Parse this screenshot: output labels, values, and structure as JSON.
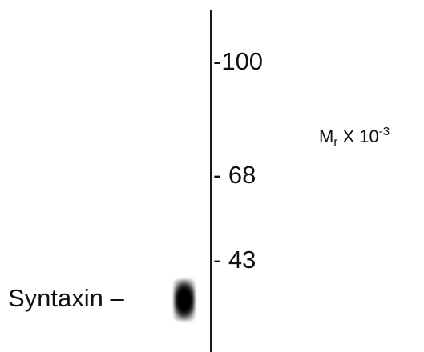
{
  "markers": {
    "m100": "-100",
    "m68": "- 68",
    "m43": "- 43"
  },
  "mr_label": {
    "main": "M",
    "subscript": "r",
    "multiplier": " X 10",
    "exponent": "-3"
  },
  "band": {
    "label": "Syntaxin –",
    "color": "#000000"
  }
}
